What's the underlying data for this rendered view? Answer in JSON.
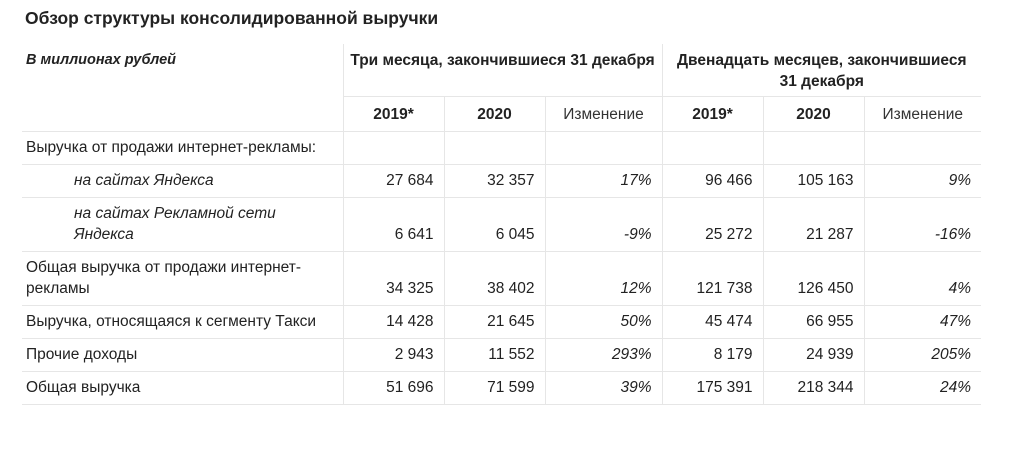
{
  "title": "Обзор структуры консолидированной выручки",
  "header": {
    "unit": "В миллионах рублей",
    "group1": "Три месяца, закончившиеся 31 декабря",
    "group2": "Двенадцать месяцев, закончившиеся 31 декабря",
    "cols": [
      "2019*",
      "2020",
      "Изменение",
      "2019*",
      "2020",
      "Изменение"
    ]
  },
  "rows": [
    {
      "label": "Выручка от продажи интернет-рекламы:",
      "values": [
        "",
        "",
        "",
        "",
        "",
        ""
      ]
    },
    {
      "label": "на сайтах Яндекса",
      "values": [
        "27 684",
        "32 357",
        "17%",
        "96 466",
        "105 163",
        "9%"
      ]
    },
    {
      "label": "на сайтах Рекламной сети Яндекса",
      "values": [
        "6 641",
        "6 045",
        "-9%",
        "25 272",
        "21 287",
        "-16%"
      ]
    },
    {
      "label": "Общая выручка от продажи интернет-рекламы",
      "values": [
        "34 325",
        "38 402",
        "12%",
        "121 738",
        "126 450",
        "4%"
      ]
    },
    {
      "label": "Выручка, относящаяся к сегменту Такси",
      "values": [
        "14 428",
        "21 645",
        "50%",
        "45 474",
        "66 955",
        "47%"
      ]
    },
    {
      "label": "Прочие доходы",
      "values": [
        "2 943",
        "11 552",
        "293%",
        "8 179",
        "24 939",
        "205%"
      ]
    },
    {
      "label": "Общая выручка",
      "values": [
        "51 696",
        "71 599",
        "39%",
        "175 391",
        "218 344",
        "24%"
      ]
    }
  ]
}
